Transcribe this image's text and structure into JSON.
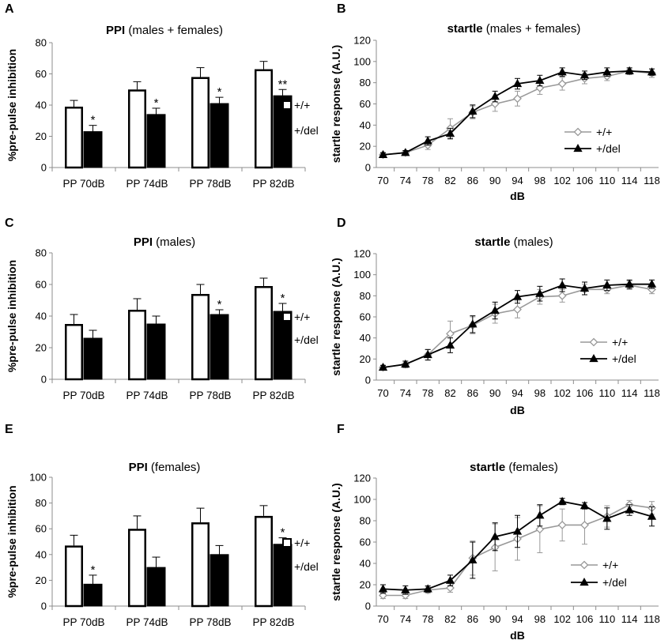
{
  "figure": {
    "panel_labels": [
      "A",
      "B",
      "C",
      "D",
      "E",
      "F"
    ]
  },
  "chart_data": [
    {
      "panel": "A",
      "type": "bar",
      "title_bold": "PPI",
      "title_rest": "(males + females)",
      "ylabel": "%pre-pulse inhibition",
      "xlabel": "",
      "ylim": [
        0,
        80
      ],
      "yticks": [
        0,
        20,
        40,
        60,
        80
      ],
      "categories": [
        "PP 70dB",
        "PP 74dB",
        "PP 78dB",
        "PP 82dB"
      ],
      "series": [
        {
          "name": "+/+",
          "values": [
            39,
            50,
            58,
            63
          ],
          "errors": [
            4,
            5,
            6,
            5
          ],
          "fill": "#ffffff"
        },
        {
          "name": "+/del",
          "values": [
            23,
            34,
            41,
            46
          ],
          "errors": [
            4,
            4,
            4,
            4
          ],
          "fill": "#000000"
        }
      ],
      "significance": [
        "*",
        "*",
        "*",
        "**"
      ]
    },
    {
      "panel": "B",
      "type": "line",
      "title_bold": "startle",
      "title_rest": "(males + females)",
      "ylabel": "startle response (A.U.)",
      "xlabel": "dB",
      "ylim": [
        0,
        120
      ],
      "yticks": [
        0,
        20,
        40,
        60,
        80,
        100,
        120
      ],
      "x": [
        70,
        74,
        78,
        82,
        86,
        90,
        94,
        98,
        102,
        106,
        110,
        114,
        118
      ],
      "legend_position": "lower-right",
      "series": [
        {
          "name": "+/+",
          "values": [
            12,
            14,
            21,
            37,
            52,
            60,
            65,
            75,
            79,
            84,
            86,
            91,
            89
          ],
          "errors": [
            2,
            2,
            4,
            9,
            6,
            7,
            7,
            6,
            6,
            5,
            4,
            3,
            4
          ],
          "color": "#999999",
          "marker": "diamond-open"
        },
        {
          "name": "+/del",
          "values": [
            12,
            14,
            25,
            32,
            53,
            67,
            79,
            82,
            90,
            87,
            90,
            91,
            90
          ],
          "errors": [
            2,
            2,
            4,
            5,
            6,
            5,
            5,
            5,
            4,
            4,
            4,
            3,
            3
          ],
          "color": "#000000",
          "marker": "triangle"
        }
      ]
    },
    {
      "panel": "C",
      "type": "bar",
      "title_bold": "PPI",
      "title_rest": "(males)",
      "ylabel": "%pre-pulse inhibition",
      "xlabel": "",
      "ylim": [
        0,
        80
      ],
      "yticks": [
        0,
        20,
        40,
        60,
        80
      ],
      "categories": [
        "PP 70dB",
        "PP 74dB",
        "PP 78dB",
        "PP 82dB"
      ],
      "series": [
        {
          "name": "+/+",
          "values": [
            35,
            44,
            54,
            59
          ],
          "errors": [
            6,
            7,
            6,
            5
          ],
          "fill": "#ffffff"
        },
        {
          "name": "+/del",
          "values": [
            26,
            35,
            41,
            43
          ],
          "errors": [
            5,
            5,
            3,
            5
          ],
          "fill": "#000000"
        }
      ],
      "significance": [
        "",
        "",
        "*",
        "*"
      ]
    },
    {
      "panel": "D",
      "type": "line",
      "title_bold": "startle",
      "title_rest": "(males)",
      "ylabel": "startle response (A.U.)",
      "xlabel": "dB",
      "ylim": [
        0,
        120
      ],
      "yticks": [
        0,
        20,
        40,
        60,
        80,
        100,
        120
      ],
      "x": [
        70,
        74,
        78,
        82,
        86,
        90,
        94,
        98,
        102,
        106,
        110,
        114,
        118
      ],
      "legend_position": "lower-right",
      "series": [
        {
          "name": "+/+",
          "values": [
            12,
            15,
            24,
            44,
            52,
            63,
            67,
            79,
            80,
            86,
            86,
            90,
            86
          ],
          "errors": [
            2,
            3,
            5,
            12,
            8,
            9,
            8,
            7,
            6,
            5,
            4,
            4,
            4
          ],
          "color": "#999999",
          "marker": "diamond-open"
        },
        {
          "name": "+/del",
          "values": [
            12,
            15,
            24,
            33,
            53,
            66,
            79,
            82,
            90,
            87,
            90,
            91,
            91
          ],
          "errors": [
            2,
            3,
            5,
            7,
            8,
            8,
            6,
            7,
            6,
            6,
            5,
            4,
            4
          ],
          "color": "#000000",
          "marker": "triangle"
        }
      ]
    },
    {
      "panel": "E",
      "type": "bar",
      "title_bold": "PPI",
      "title_rest": "(females)",
      "ylabel": "%pre-pulse inhibition",
      "xlabel": "",
      "ylim": [
        0,
        100
      ],
      "yticks": [
        0,
        20,
        40,
        60,
        80,
        100
      ],
      "categories": [
        "PP 70dB",
        "PP 74dB",
        "PP 78dB",
        "PP 82dB"
      ],
      "series": [
        {
          "name": "+/+",
          "values": [
            47,
            60,
            65,
            70
          ],
          "errors": [
            8,
            10,
            11,
            8
          ],
          "fill": "#ffffff"
        },
        {
          "name": "+/del",
          "values": [
            17,
            30,
            40,
            48
          ],
          "errors": [
            7,
            8,
            7,
            5
          ],
          "fill": "#000000"
        }
      ],
      "significance": [
        "*",
        "",
        "",
        "*"
      ]
    },
    {
      "panel": "F",
      "type": "line",
      "title_bold": "startle",
      "title_rest": "(females)",
      "ylabel": "startle response (A.U.)",
      "xlabel": "dB",
      "ylim": [
        0,
        120
      ],
      "yticks": [
        0,
        20,
        40,
        60,
        80,
        100,
        120
      ],
      "x": [
        70,
        74,
        78,
        82,
        86,
        90,
        94,
        98,
        102,
        106,
        110,
        114,
        118
      ],
      "legend_position": "lower-right",
      "series": [
        {
          "name": "+/+",
          "values": [
            10,
            10,
            15,
            17,
            45,
            55,
            63,
            72,
            76,
            76,
            84,
            95,
            92
          ],
          "errors": [
            3,
            3,
            3,
            4,
            16,
            22,
            20,
            22,
            15,
            18,
            10,
            4,
            6
          ],
          "color": "#999999",
          "marker": "diamond-open"
        },
        {
          "name": "+/del",
          "values": [
            16,
            15,
            16,
            24,
            43,
            65,
            70,
            85,
            98,
            94,
            82,
            90,
            84
          ],
          "errors": [
            4,
            4,
            3,
            5,
            17,
            13,
            15,
            10,
            3,
            3,
            10,
            5,
            9
          ],
          "color": "#000000",
          "marker": "triangle"
        }
      ]
    }
  ]
}
